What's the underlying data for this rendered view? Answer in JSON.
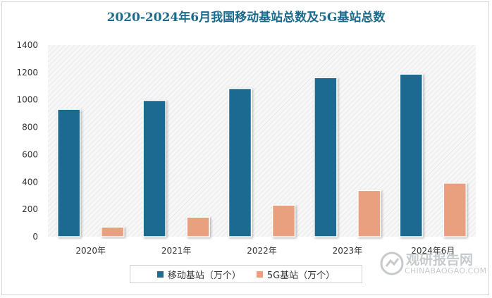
{
  "chart_data": {
    "type": "bar",
    "title": "2020-2024年6月我国移动基站总数及5G基站总数",
    "categories": [
      "2020年",
      "2021年",
      "2022年",
      "2023年",
      "2024年6月"
    ],
    "series": [
      {
        "name": "移动基站（万个）",
        "values": [
          931,
          996,
          1083,
          1162,
          1188
        ],
        "color": "#1f6b91"
      },
      {
        "name": "5G基站（万个）",
        "values": [
          71,
          143,
          231,
          338,
          392
        ],
        "color": "#e8a07f"
      }
    ],
    "ylim": [
      0,
      1400
    ],
    "yticks": [
      0,
      200,
      400,
      600,
      800,
      1000,
      1200,
      1400
    ],
    "grid": false,
    "legend": "bottom"
  },
  "watermark": {
    "brand": "观研报告网",
    "url": "CHINABAOGAO.COM"
  }
}
